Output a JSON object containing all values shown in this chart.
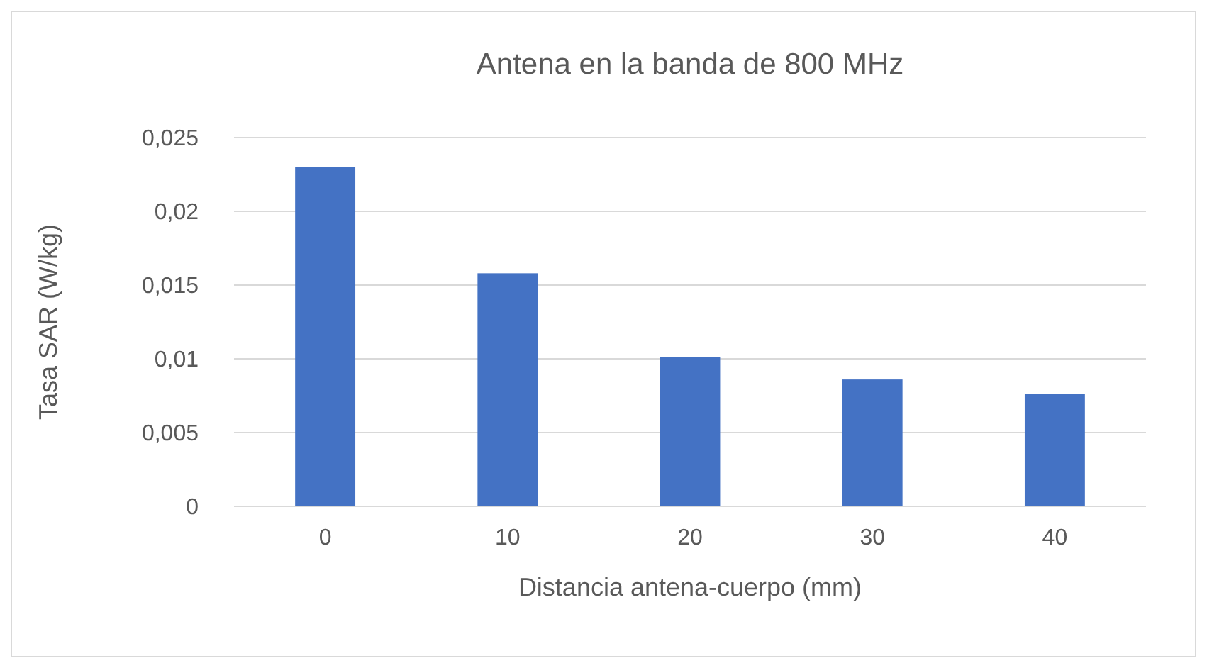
{
  "chart_data": {
    "type": "bar",
    "title": "Antena en la banda de 800 MHz",
    "xlabel": "Distancia antena-cuerpo (mm)",
    "ylabel": "Tasa SAR (W/kg)",
    "categories": [
      "0",
      "10",
      "20",
      "30",
      "40"
    ],
    "values": [
      0.023,
      0.0158,
      0.0101,
      0.0086,
      0.0076
    ],
    "color": "#4472c4",
    "ylim": [
      0,
      0.025
    ],
    "yticks": [
      {
        "value": 0,
        "label": "0"
      },
      {
        "value": 0.005,
        "label": "0,005"
      },
      {
        "value": 0.01,
        "label": "0,01"
      },
      {
        "value": 0.015,
        "label": "0,015"
      },
      {
        "value": 0.02,
        "label": "0,02"
      },
      {
        "value": 0.025,
        "label": "0,025"
      }
    ],
    "grid": "y"
  }
}
